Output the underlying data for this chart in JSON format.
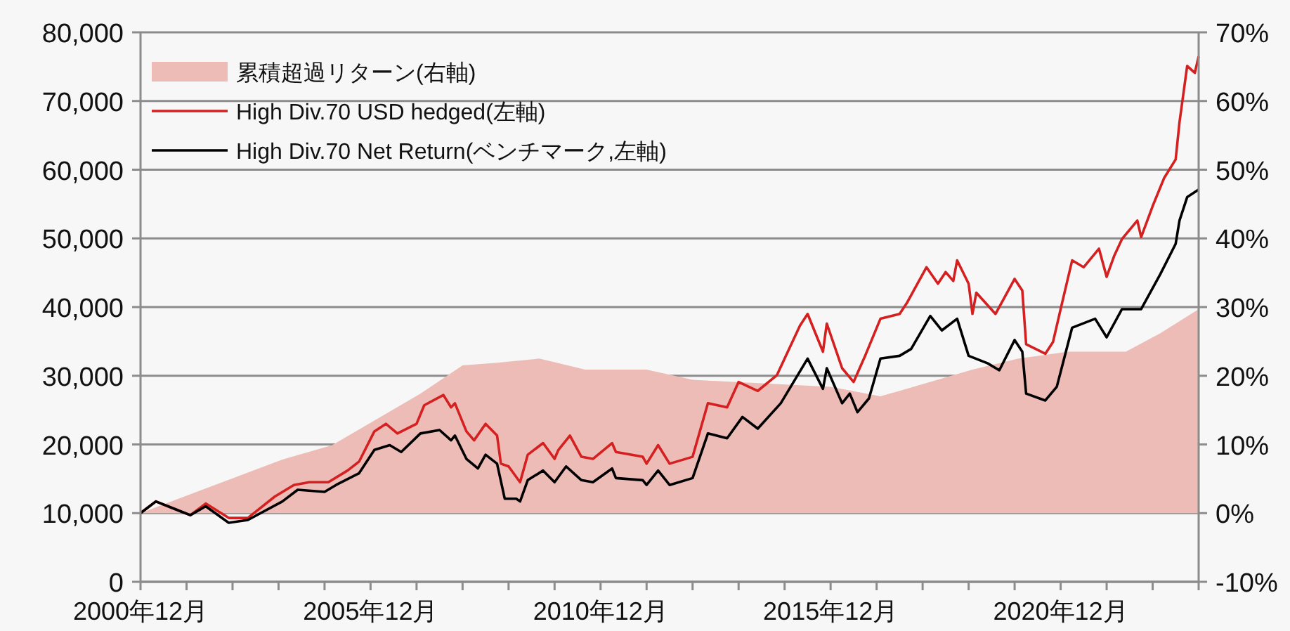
{
  "chart_data": {
    "type": "line",
    "legend": "top left",
    "grid": "y",
    "xlim": [
      "2000-12",
      "2023-12"
    ],
    "xticks": [
      {
        "value": "2000-12",
        "label": "2000年12月"
      },
      {
        "value": "2001-12",
        "label": null
      },
      {
        "value": "2002-12",
        "label": null
      },
      {
        "value": "2003-12",
        "label": null
      },
      {
        "value": "2004-12",
        "label": null
      },
      {
        "value": "2005-12",
        "label": "2005年12月"
      },
      {
        "value": "2006-12",
        "label": null
      },
      {
        "value": "2007-12",
        "label": null
      },
      {
        "value": "2008-12",
        "label": null
      },
      {
        "value": "2009-12",
        "label": null
      },
      {
        "value": "2010-12",
        "label": "2010年12月"
      },
      {
        "value": "2011-12",
        "label": null
      },
      {
        "value": "2012-12",
        "label": null
      },
      {
        "value": "2013-12",
        "label": null
      },
      {
        "value": "2014-12",
        "label": null
      },
      {
        "value": "2015-12",
        "label": "2015年12月"
      },
      {
        "value": "2016-12",
        "label": null
      },
      {
        "value": "2017-12",
        "label": null
      },
      {
        "value": "2018-12",
        "label": null
      },
      {
        "value": "2019-12",
        "label": null
      },
      {
        "value": "2020-12",
        "label": "2020年12月"
      },
      {
        "value": "2021-12",
        "label": null
      },
      {
        "value": "2022-12",
        "label": null
      },
      {
        "value": "2023-12",
        "label": null
      }
    ],
    "ylim": [
      0,
      80000
    ],
    "yticks": [
      {
        "value": 0,
        "label": "0"
      },
      {
        "value": 10000,
        "label": "10,000"
      },
      {
        "value": 20000,
        "label": "20,000"
      },
      {
        "value": 30000,
        "label": "30,000"
      },
      {
        "value": 40000,
        "label": "40,000"
      },
      {
        "value": 50000,
        "label": "50,000"
      },
      {
        "value": 60000,
        "label": "60,000"
      },
      {
        "value": 70000,
        "label": "70,000"
      },
      {
        "value": 80000,
        "label": "80,000"
      }
    ],
    "y2lim": [
      -10,
      70
    ],
    "y2ticks": [
      {
        "value": -10,
        "label": "-10%"
      },
      {
        "value": 0,
        "label": "0%"
      },
      {
        "value": 10,
        "label": "10%"
      },
      {
        "value": 20,
        "label": "20%"
      },
      {
        "value": 30,
        "label": "30%"
      },
      {
        "value": 40,
        "label": "40%"
      },
      {
        "value": 50,
        "label": "50%"
      },
      {
        "value": 60,
        "label": "60%"
      },
      {
        "value": 70,
        "label": "70%"
      }
    ],
    "series": [
      {
        "name": "累積超過リターン(右軸)",
        "type": "area",
        "axis": "y2",
        "color": "#edbcb7",
        "x": [
          "2000-12",
          "2004-01",
          "2005-02",
          "2007-01",
          "2007-12",
          "2008-09",
          "2009-08",
          "2010-08",
          "2011-12",
          "2012-12",
          "2015-12",
          "2017-01",
          "2019-01",
          "2020-01",
          "2021-02",
          "2022-05",
          "2023-02",
          "2023-12"
        ],
        "values": [
          0,
          7.8,
          9.9,
          17.4,
          21.5,
          21.9,
          22.5,
          20.9,
          20.9,
          19.4,
          18.4,
          17,
          20.9,
          22.5,
          23.5,
          23.5,
          26.2,
          29.7
        ]
      },
      {
        "name": "High Div.70 USD hedged(左軸)",
        "color": "#d42020",
        "x": [
          "2000-12",
          "2001-04",
          "2002-01",
          "2002-05",
          "2002-11",
          "2003-04",
          "2003-11",
          "2004-04",
          "2004-08",
          "2005-01",
          "2005-06",
          "2005-09",
          "2006-01",
          "2006-04",
          "2006-07",
          "2006-12",
          "2007-02",
          "2007-07",
          "2007-09",
          "2007-10",
          "2008-01",
          "2008-03",
          "2008-06",
          "2008-09",
          "2008-10",
          "2008-12",
          "2009-03",
          "2009-05",
          "2009-09",
          "2009-12",
          "2010-01",
          "2010-04",
          "2010-07",
          "2010-10",
          "2011-03",
          "2011-04",
          "2011-11",
          "2011-12",
          "2012-03",
          "2012-06",
          "2012-12",
          "2013-04",
          "2013-09",
          "2013-12",
          "2014-05",
          "2014-10",
          "2015-04",
          "2015-06",
          "2015-10",
          "2015-11",
          "2016-03",
          "2016-06",
          "2016-09",
          "2017-01",
          "2017-06",
          "2017-08",
          "2018-01",
          "2018-04",
          "2018-06",
          "2018-08",
          "2018-09",
          "2018-12",
          "2019-01",
          "2019-02",
          "2019-07",
          "2019-12",
          "2020-02",
          "2020-03",
          "2020-08",
          "2020-10",
          "2020-12",
          "2021-03",
          "2021-06",
          "2021-10",
          "2021-12",
          "2022-02",
          "2022-04",
          "2022-08",
          "2022-09",
          "2022-12",
          "2023-03",
          "2023-06",
          "2023-07",
          "2023-09",
          "2023-11",
          "2023-12"
        ],
        "values": [
          10000,
          11700,
          9700,
          11400,
          9300,
          9300,
          12400,
          14100,
          14500,
          14500,
          16200,
          17500,
          21900,
          23000,
          21600,
          23000,
          25700,
          27200,
          25400,
          26000,
          21900,
          20600,
          23000,
          21300,
          17200,
          16800,
          14500,
          18500,
          20200,
          17900,
          19200,
          21300,
          18200,
          17900,
          20200,
          18900,
          18200,
          17200,
          19900,
          17200,
          18200,
          26000,
          25400,
          29100,
          27800,
          30100,
          37300,
          39000,
          33500,
          37600,
          31100,
          29100,
          32900,
          38300,
          39000,
          40700,
          45800,
          43400,
          45100,
          43800,
          46800,
          43400,
          39000,
          42100,
          39000,
          44100,
          42400,
          34600,
          33200,
          34900,
          39700,
          46800,
          45800,
          48500,
          44400,
          47500,
          49900,
          52600,
          50200,
          54700,
          58800,
          61500,
          66900,
          75100,
          74100,
          76500
        ]
      },
      {
        "name": "High Div.70 Net Return(ベンチマーク,左軸)",
        "color": "#000000",
        "x": [
          "2000-12",
          "2001-04",
          "2002-01",
          "2002-05",
          "2002-11",
          "2003-04",
          "2004-01",
          "2004-05",
          "2004-12",
          "2005-03",
          "2005-09",
          "2006-01",
          "2006-05",
          "2006-08",
          "2007-01",
          "2007-06",
          "2007-09",
          "2007-10",
          "2008-01",
          "2008-04",
          "2008-06",
          "2008-09",
          "2008-11",
          "2009-02",
          "2009-03",
          "2009-05",
          "2009-09",
          "2009-12",
          "2010-03",
          "2010-07",
          "2010-10",
          "2011-03",
          "2011-04",
          "2011-11",
          "2011-12",
          "2012-03",
          "2012-06",
          "2012-12",
          "2013-04",
          "2013-09",
          "2014-01",
          "2014-05",
          "2014-11",
          "2015-06",
          "2015-10",
          "2015-11",
          "2016-03",
          "2016-05",
          "2016-07",
          "2016-10",
          "2017-01",
          "2017-06",
          "2017-09",
          "2018-02",
          "2018-05",
          "2018-09",
          "2018-12",
          "2019-05",
          "2019-08",
          "2019-12",
          "2020-02",
          "2020-03",
          "2020-08",
          "2020-11",
          "2021-03",
          "2021-09",
          "2021-12",
          "2022-04",
          "2022-09",
          "2023-02",
          "2023-06",
          "2023-07",
          "2023-09",
          "2023-12"
        ],
        "values": [
          10000,
          11700,
          9700,
          11000,
          8600,
          9000,
          11700,
          13400,
          13100,
          14100,
          15800,
          19200,
          19900,
          18900,
          21600,
          22100,
          20600,
          21300,
          17900,
          16500,
          18500,
          17200,
          12100,
          12100,
          11700,
          14800,
          16200,
          14500,
          16800,
          14800,
          14500,
          16500,
          15100,
          14800,
          14100,
          16200,
          14100,
          15100,
          21600,
          20900,
          24000,
          22300,
          26000,
          32500,
          28100,
          31100,
          26000,
          27400,
          24700,
          26700,
          32500,
          32900,
          33900,
          38700,
          36600,
          38300,
          32900,
          31800,
          30800,
          35200,
          33500,
          27400,
          26400,
          28400,
          37000,
          38300,
          35600,
          39700,
          39700,
          44800,
          49200,
          52600,
          56000,
          57100
        ]
      }
    ]
  }
}
